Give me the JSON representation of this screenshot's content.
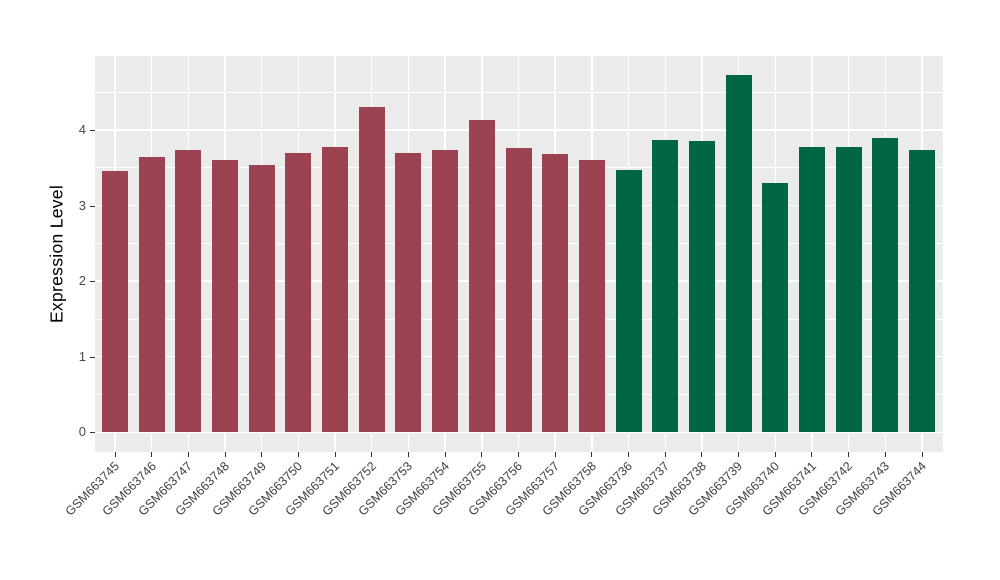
{
  "chart_data": {
    "type": "bar",
    "title": "",
    "xlabel": "",
    "ylabel": "Expression Level",
    "ylim": [
      0,
      4.98
    ],
    "yticks": [
      0,
      1,
      2,
      3,
      4
    ],
    "minor_gridlines": [
      0.5,
      1.5,
      2.5,
      3.5,
      4.5
    ],
    "grid": "on",
    "legend": "none",
    "panel_background": "#EBEBEB",
    "gridline_color": "#FFFFFF",
    "categories": [
      "GSM663745",
      "GSM663746",
      "GSM663747",
      "GSM663748",
      "GSM663749",
      "GSM663750",
      "GSM663751",
      "GSM663752",
      "GSM663753",
      "GSM663754",
      "GSM663755",
      "GSM663756",
      "GSM663757",
      "GSM663758",
      "GSM663736",
      "GSM663737",
      "GSM663738",
      "GSM663739",
      "GSM663740",
      "GSM663741",
      "GSM663742",
      "GSM663743",
      "GSM663744"
    ],
    "values": [
      3.45,
      3.64,
      3.74,
      3.6,
      3.53,
      3.7,
      3.77,
      4.3,
      3.7,
      3.74,
      4.13,
      3.76,
      3.68,
      3.6,
      3.47,
      3.86,
      3.85,
      4.73,
      3.3,
      3.78,
      3.77,
      3.89,
      3.74
    ],
    "groups": [
      {
        "name": "GSM663745-GSM663758",
        "color": "#9B4350",
        "count": 14
      },
      {
        "name": "GSM663736-GSM663744",
        "color": "#006646",
        "count": 9
      }
    ]
  }
}
